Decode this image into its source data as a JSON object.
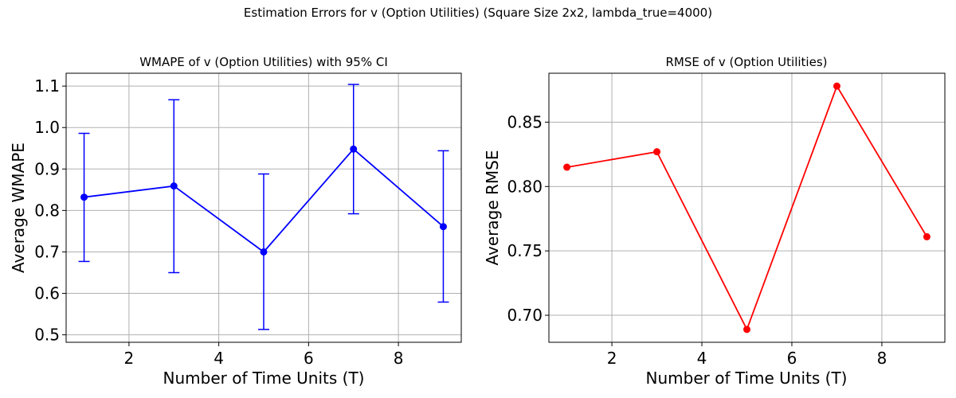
{
  "figure": {
    "suptitle": "Estimation Errors for v (Option Utilities) (Square Size 2x2, lambda_true=4000)"
  },
  "chart_data": [
    {
      "type": "line",
      "title": "WMAPE of v (Option Utilities) with 95% CI",
      "xlabel": "Number of Time Units (T)",
      "ylabel": "Average WMAPE",
      "x": [
        1,
        3,
        5,
        7,
        9
      ],
      "series": [
        {
          "values": [
            0.832,
            0.859,
            0.7,
            0.948,
            0.761
          ],
          "ci_lower": [
            0.677,
            0.65,
            0.513,
            0.792,
            0.579
          ],
          "ci_upper": [
            0.986,
            1.067,
            0.888,
            1.104,
            0.944
          ],
          "color": "#0000ff",
          "marker": "circle",
          "error_bars": true
        }
      ],
      "xlim": [
        0.6,
        9.4
      ],
      "ylim": [
        0.482,
        1.131
      ],
      "xticks": [
        "2",
        "4",
        "6",
        "8"
      ],
      "yticks": [
        "0.5",
        "0.6",
        "0.7",
        "0.8",
        "0.9",
        "1.0",
        "1.1"
      ],
      "grid": true
    },
    {
      "type": "line",
      "title": "RMSE of v (Option Utilities)",
      "xlabel": "Number of Time Units (T)",
      "ylabel": "Average RMSE",
      "x": [
        1,
        3,
        5,
        7,
        9
      ],
      "series": [
        {
          "values": [
            0.815,
            0.827,
            0.689,
            0.878,
            0.761
          ],
          "color": "#ff0000",
          "marker": "circle"
        }
      ],
      "xlim": [
        0.6,
        9.4
      ],
      "ylim": [
        0.679,
        0.888
      ],
      "xticks": [
        "2",
        "4",
        "6",
        "8"
      ],
      "yticks": [
        "0.70",
        "0.75",
        "0.80",
        "0.85"
      ],
      "grid": true
    }
  ]
}
